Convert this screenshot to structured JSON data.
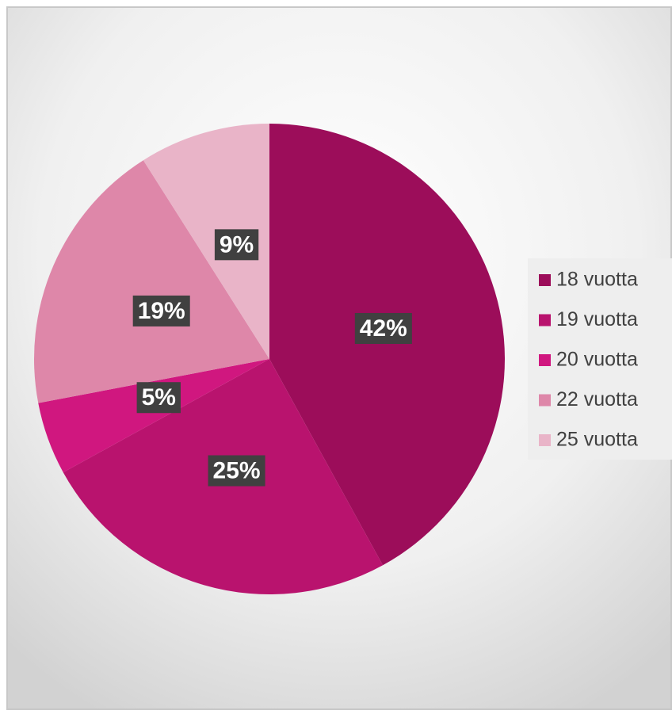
{
  "chart_data": {
    "type": "pie",
    "categories": [
      "18 vuotta",
      "19 vuotta",
      "20 vuotta",
      "22 vuotta",
      "25 vuotta"
    ],
    "values": [
      42,
      25,
      5,
      19,
      9
    ],
    "value_labels": [
      "42%",
      "25%",
      "5%",
      "19%",
      "9%"
    ],
    "colors": [
      "#9c0d5a",
      "#b9136e",
      "#d0177f",
      "#de87a9",
      "#e9b4c8"
    ],
    "legend": "right"
  }
}
